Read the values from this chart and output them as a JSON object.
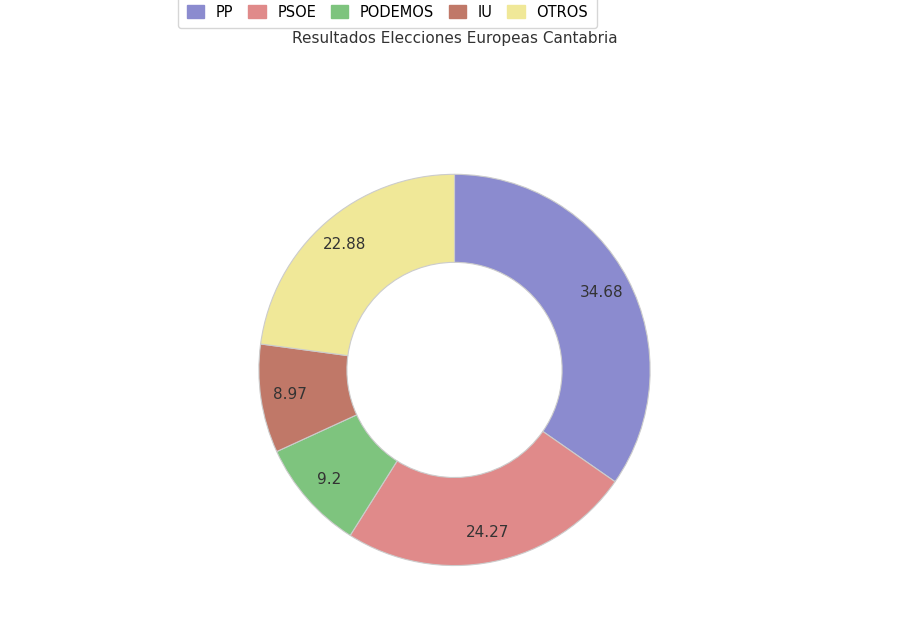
{
  "title": "Resultados Elecciones Europeas Cantabria",
  "labels": [
    "PP",
    "PSOE",
    "PODEMOS",
    "IU",
    "OTROS"
  ],
  "values": [
    34.68,
    24.27,
    9.2,
    8.97,
    22.88
  ],
  "colors": [
    "#8b8bcf",
    "#e08a8a",
    "#7ec47e",
    "#c07868",
    "#f0e898"
  ],
  "autopct_values": [
    "34.68",
    "24.27",
    "9.2",
    "8.97",
    "22.88"
  ],
  "legend_colors": [
    "#8b8bcf",
    "#e08a8a",
    "#7ec47e",
    "#c07868",
    "#f0e898"
  ],
  "startangle": 90,
  "wedge_linewidth": 0.8,
  "wedge_edgecolor": "#cccccc"
}
